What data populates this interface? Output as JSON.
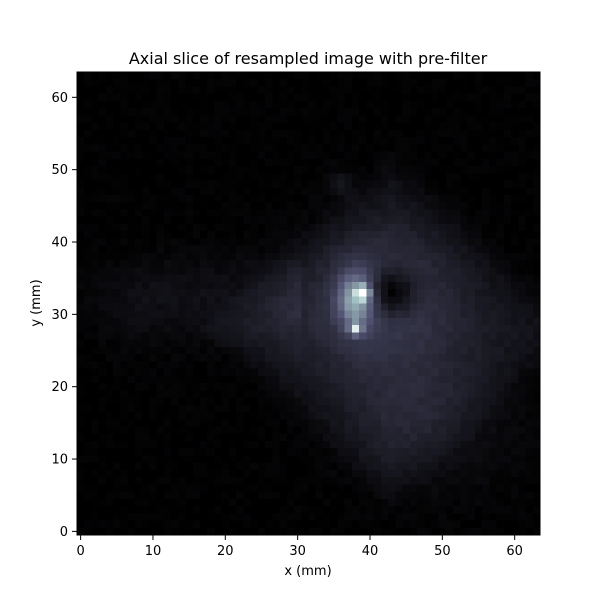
{
  "chart_data": {
    "type": "heatmap",
    "title": "Axial slice of resampled image with pre-filter",
    "xlabel": "x (mm)",
    "ylabel": "y (mm)",
    "xlim": [
      -0.5,
      63.5
    ],
    "ylim": [
      63.5,
      -0.5
    ],
    "y_inverted": true,
    "grid": false,
    "colormap": "bone",
    "x_ticks": [
      0,
      10,
      20,
      30,
      40,
      50,
      60
    ],
    "y_ticks": [
      0,
      10,
      20,
      30,
      40,
      50,
      60
    ],
    "x_tick_labels": [
      "0",
      "10",
      "20",
      "30",
      "40",
      "50",
      "60"
    ],
    "y_tick_labels": [
      "0",
      "10",
      "20",
      "30",
      "40",
      "50",
      "60"
    ],
    "image_size": [
      64,
      64
    ],
    "features": [
      {
        "kind": "diamond",
        "cx": 43,
        "cy": 35,
        "rx": 24,
        "ry": 22,
        "amplitude": 0.11
      },
      {
        "kind": "ellipse",
        "cx": 41,
        "cy": 31,
        "rx": 11,
        "ry": 10,
        "amplitude": 0.16
      },
      {
        "kind": "ellipse",
        "cx": 48,
        "cy": 48,
        "rx": 12,
        "ry": 10,
        "amplitude": 0.08
      },
      {
        "kind": "band",
        "x0": 0,
        "x1": 30,
        "cy": 31,
        "half_width": 6,
        "amplitude": 0.06
      },
      {
        "kind": "ellipse",
        "cx": 38,
        "cy": 31,
        "rx": 2.5,
        "ry": 4,
        "amplitude": 0.45
      },
      {
        "kind": "point",
        "cx": 39,
        "cy": 30,
        "amplitude": 1.0
      },
      {
        "kind": "point",
        "cx": 38,
        "cy": 35,
        "amplitude": 0.55
      },
      {
        "kind": "hole",
        "cx": 43,
        "cy": 30,
        "rx": 4,
        "ry": 4,
        "amplitude": 0.25
      },
      {
        "kind": "ellipse",
        "cx": 36,
        "cy": 15,
        "rx": 2,
        "ry": 2,
        "amplitude": 0.08
      }
    ]
  }
}
